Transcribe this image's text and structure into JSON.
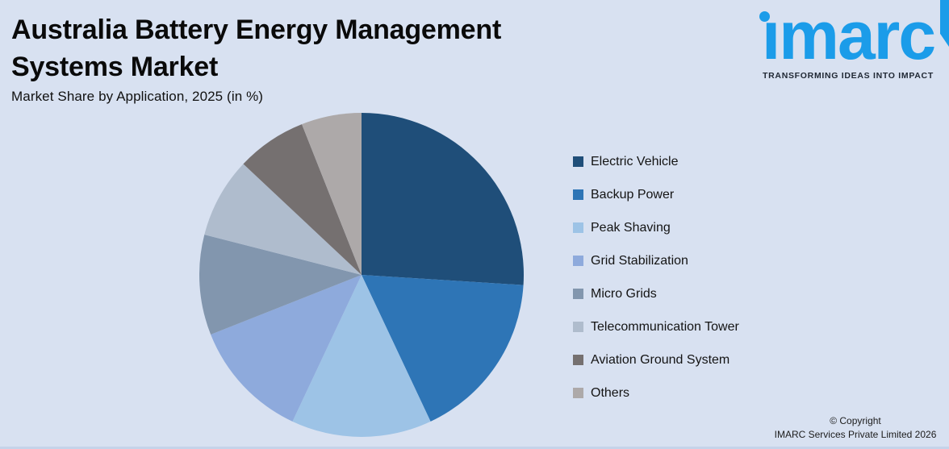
{
  "header": {
    "title": "Australia Battery Energy Management Systems Market",
    "subtitle": "Market Share by Application, 2025 (in %)"
  },
  "logo": {
    "brand": "ımarc",
    "tagline": "TRANSFORMING IDEAS INTO IMPACT",
    "brand_color": "#1B9CE9",
    "tagline_color": "#1F2733"
  },
  "chart_data": {
    "type": "pie",
    "title": "Australia Battery Energy Management Systems Market",
    "subtitle": "Market Share by Application, 2025 (in %)",
    "unit": "%",
    "start_angle_deg": 0,
    "direction": "clockwise",
    "legend_position": "right",
    "slices": [
      {
        "label": "Electric Vehicle",
        "value": 26,
        "color": "#1F4E79"
      },
      {
        "label": "Backup Power",
        "value": 17,
        "color": "#2E75B6"
      },
      {
        "label": "Peak Shaving",
        "value": 14,
        "color": "#9DC3E6"
      },
      {
        "label": "Grid Stabilization",
        "value": 12,
        "color": "#8EAADC"
      },
      {
        "label": "Micro Grids",
        "value": 10,
        "color": "#8296AE"
      },
      {
        "label": "Telecommunication Tower",
        "value": 8,
        "color": "#AFBCCD"
      },
      {
        "label": "Aviation Ground System",
        "value": 7,
        "color": "#757070"
      },
      {
        "label": "Others",
        "value": 6,
        "color": "#ADA9A9"
      }
    ]
  },
  "footer": {
    "copyright_line1": "© Copyright",
    "copyright_line2": "IMARC Services Private Limited 2026"
  },
  "colors": {
    "background": "#D8E1F1",
    "bottom_strip": "#C5D3E9",
    "title_text": "#0A0A0A",
    "legend_text": "#141414"
  }
}
